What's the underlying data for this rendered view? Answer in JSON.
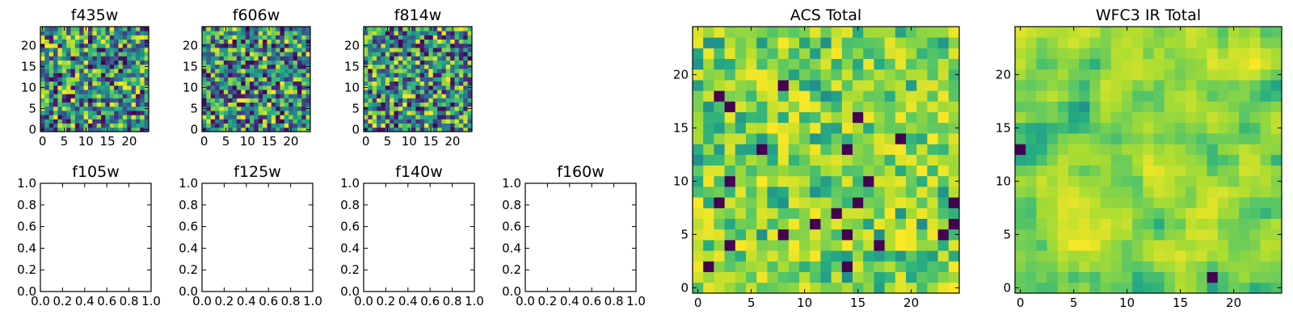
{
  "chart_data": [
    {
      "type": "heatmap",
      "title": "f435w",
      "grid_size": [
        25,
        25
      ],
      "xlim": [
        -0.5,
        24.5
      ],
      "ylim": [
        -0.5,
        24.5
      ],
      "xticks": [
        "0",
        "5",
        "10",
        "15",
        "20"
      ],
      "yticks": [
        "0",
        "5",
        "10",
        "15",
        "20"
      ],
      "colormap": "viridis",
      "pattern": "pixel noise",
      "seed": 11
    },
    {
      "type": "heatmap",
      "title": "f606w",
      "grid_size": [
        25,
        25
      ],
      "xlim": [
        -0.5,
        24.5
      ],
      "ylim": [
        -0.5,
        24.5
      ],
      "xticks": [
        "0",
        "5",
        "10",
        "15",
        "20"
      ],
      "yticks": [
        "0",
        "5",
        "10",
        "15",
        "20"
      ],
      "colormap": "viridis",
      "pattern": "pixel noise",
      "seed": 23
    },
    {
      "type": "heatmap",
      "title": "f814w",
      "grid_size": [
        25,
        25
      ],
      "xlim": [
        -0.5,
        24.5
      ],
      "ylim": [
        -0.5,
        24.5
      ],
      "xticks": [
        "0",
        "5",
        "10",
        "15",
        "20"
      ],
      "yticks": [
        "0",
        "5",
        "10",
        "15",
        "20"
      ],
      "colormap": "viridis",
      "pattern": "pixel noise",
      "seed": 37
    },
    {
      "type": "empty",
      "title": "f105w",
      "xlim": [
        0,
        1
      ],
      "ylim": [
        0,
        1
      ],
      "xticks": [
        "0.0",
        "0.2",
        "0.4",
        "0.6",
        "0.8",
        "1.0"
      ],
      "yticks": [
        "0.0",
        "0.2",
        "0.4",
        "0.6",
        "0.8",
        "1.0"
      ]
    },
    {
      "type": "empty",
      "title": "f125w",
      "xlim": [
        0,
        1
      ],
      "ylim": [
        0,
        1
      ],
      "xticks": [
        "0.0",
        "0.2",
        "0.4",
        "0.6",
        "0.8",
        "1.0"
      ],
      "yticks": [
        "0.0",
        "0.2",
        "0.4",
        "0.6",
        "0.8",
        "1.0"
      ]
    },
    {
      "type": "empty",
      "title": "f140w",
      "xlim": [
        0,
        1
      ],
      "ylim": [
        0,
        1
      ],
      "xticks": [
        "0.0",
        "0.2",
        "0.4",
        "0.6",
        "0.8",
        "1.0"
      ],
      "yticks": [
        "0.0",
        "0.2",
        "0.4",
        "0.6",
        "0.8",
        "1.0"
      ]
    },
    {
      "type": "empty",
      "title": "f160w",
      "xlim": [
        0,
        1
      ],
      "ylim": [
        0,
        1
      ],
      "xticks": [
        "0.0",
        "0.2",
        "0.4",
        "0.6",
        "0.8",
        "1.0"
      ],
      "yticks": [
        "0.0",
        "0.2",
        "0.4",
        "0.6",
        "0.8",
        "1.0"
      ]
    },
    {
      "type": "heatmap",
      "title": "ACS Total",
      "grid_size": [
        25,
        25
      ],
      "xlim": [
        -0.5,
        24.5
      ],
      "ylim": [
        -0.5,
        24.5
      ],
      "xticks": [
        "0",
        "5",
        "10",
        "15",
        "20"
      ],
      "yticks": [
        "0",
        "5",
        "10",
        "15",
        "20"
      ],
      "colormap": "viridis",
      "pattern": "pixel noise, mostly green-yellow",
      "seed": 51
    },
    {
      "type": "heatmap",
      "title": "WFC3 IR Total",
      "grid_size": [
        25,
        25
      ],
      "xlim": [
        -0.5,
        24.5
      ],
      "ylim": [
        -0.5,
        24.5
      ],
      "xticks": [
        "0",
        "5",
        "10",
        "15",
        "20"
      ],
      "yticks": [
        "0",
        "5",
        "10",
        "15",
        "20"
      ],
      "colormap": "viridis",
      "pattern": "smooth noise, mostly green-yellow",
      "seed": 67
    }
  ]
}
